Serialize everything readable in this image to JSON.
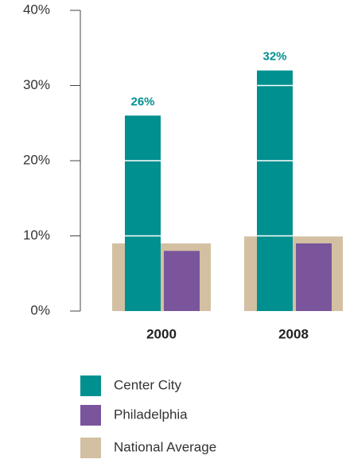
{
  "chart_data": {
    "type": "bar",
    "categories": [
      "2000",
      "2008"
    ],
    "series": [
      {
        "name": "Center City",
        "color": "#00908f",
        "values": [
          26,
          32
        ],
        "value_labels": [
          "26%",
          "32%"
        ]
      },
      {
        "name": "Philadelphia",
        "color": "#7a559c",
        "values": [
          8,
          9
        ]
      },
      {
        "name": "National Average",
        "color": "#d3c0a2",
        "values": [
          9,
          10
        ]
      }
    ],
    "ylim": [
      0,
      40
    ],
    "yticks": [
      {
        "value": 0,
        "label": "0%"
      },
      {
        "value": 10,
        "label": "10%"
      },
      {
        "value": 20,
        "label": "20%"
      },
      {
        "value": 30,
        "label": "30%"
      },
      {
        "value": 40,
        "label": "40%"
      }
    ]
  }
}
